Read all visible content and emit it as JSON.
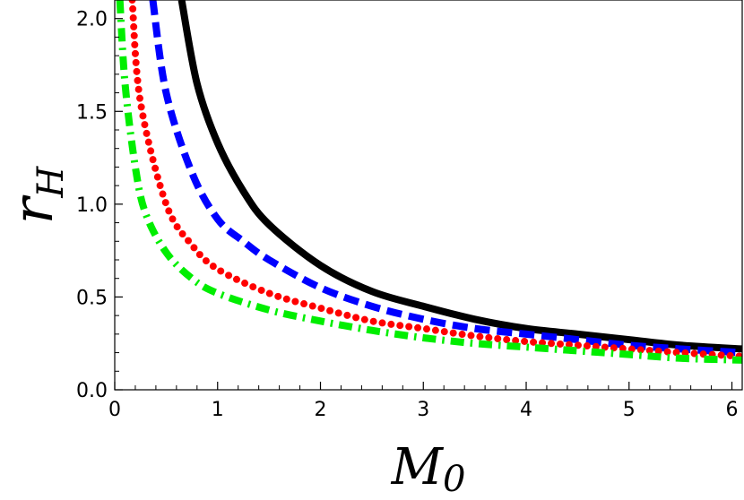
{
  "chart_data": {
    "type": "line",
    "xlabel_main": "M",
    "xlabel_sub": "0",
    "ylabel_main": "r",
    "ylabel_sub": "H",
    "xlim": [
      0,
      6.1
    ],
    "ylim": [
      0,
      2.1
    ],
    "xticks": [
      {
        "value": 0,
        "label": "0"
      },
      {
        "value": 1,
        "label": "1"
      },
      {
        "value": 2,
        "label": "2"
      },
      {
        "value": 3,
        "label": "3"
      },
      {
        "value": 4,
        "label": "4"
      },
      {
        "value": 5,
        "label": "5"
      },
      {
        "value": 6,
        "label": "6"
      }
    ],
    "yticks": [
      {
        "value": 0,
        "label": "0.0"
      },
      {
        "value": 0.5,
        "label": "0.5"
      },
      {
        "value": 1,
        "label": "1.0"
      },
      {
        "value": 1.5,
        "label": "1.5"
      },
      {
        "value": 2,
        "label": "2.0"
      }
    ],
    "grid": false,
    "series": [
      {
        "style": "solid",
        "color": "#000000",
        "x": [
          0.65,
          0.8,
          1.0,
          1.25,
          1.5,
          2.0,
          2.5,
          3.0,
          3.5,
          4.0,
          4.5,
          5.0,
          5.5,
          6.1
        ],
        "y": [
          2.1,
          1.65,
          1.33,
          1.07,
          0.89,
          0.67,
          0.53,
          0.45,
          0.38,
          0.33,
          0.3,
          0.27,
          0.24,
          0.22
        ]
      },
      {
        "style": "dashed",
        "color": "#0000ff",
        "x": [
          0.37,
          0.5,
          0.75,
          1.0,
          1.25,
          1.5,
          2.0,
          2.5,
          3.0,
          3.5,
          4.0,
          4.5,
          5.0,
          5.5,
          6.1
        ],
        "y": [
          2.1,
          1.6,
          1.17,
          0.92,
          0.8,
          0.7,
          0.55,
          0.45,
          0.38,
          0.33,
          0.3,
          0.27,
          0.24,
          0.22,
          0.2
        ]
      },
      {
        "style": "dotted",
        "color": "#ff0000",
        "x": [
          0.17,
          0.25,
          0.5,
          0.75,
          1.0,
          1.5,
          2.0,
          2.5,
          3.0,
          3.5,
          4.0,
          4.5,
          5.0,
          5.5,
          6.1
        ],
        "y": [
          2.1,
          1.55,
          1.0,
          0.78,
          0.65,
          0.52,
          0.44,
          0.37,
          0.33,
          0.29,
          0.26,
          0.24,
          0.22,
          0.2,
          0.18
        ]
      },
      {
        "style": "dashdot",
        "color": "#00ee00",
        "x": [
          0.05,
          0.1,
          0.2,
          0.3,
          0.5,
          0.75,
          1.0,
          1.5,
          2.0,
          2.5,
          3.0,
          3.5,
          4.0,
          4.5,
          5.0,
          5.5,
          6.1
        ],
        "y": [
          2.1,
          1.65,
          1.2,
          0.95,
          0.74,
          0.6,
          0.52,
          0.43,
          0.37,
          0.32,
          0.28,
          0.25,
          0.23,
          0.21,
          0.19,
          0.17,
          0.16
        ]
      }
    ]
  }
}
